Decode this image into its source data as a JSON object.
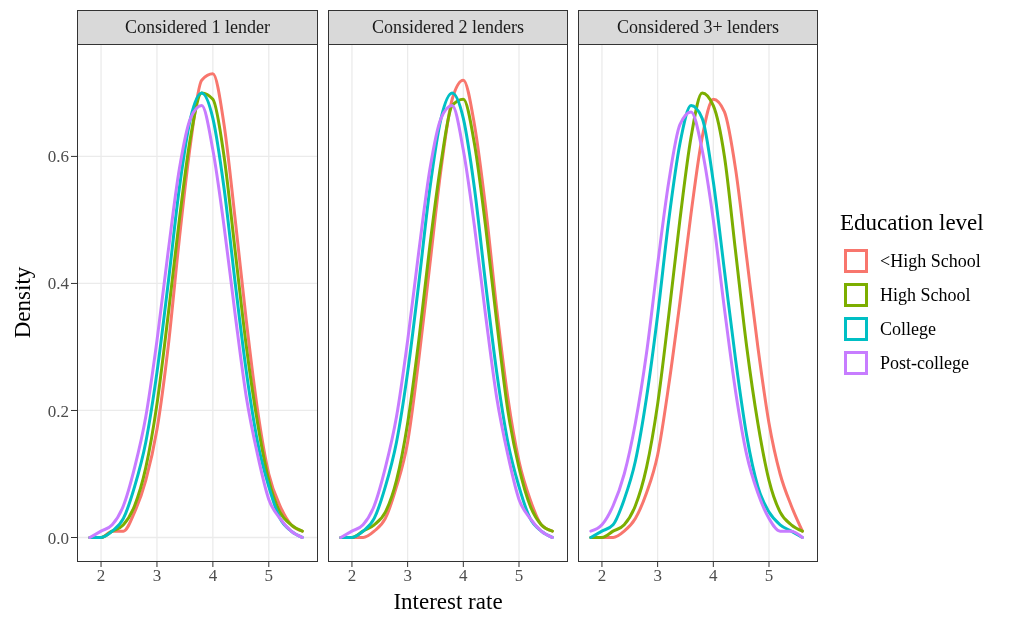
{
  "chart_data": [
    {
      "type": "line",
      "title": "Considered 1 lender",
      "ylabel": "Density",
      "x": [
        1.8,
        2.0,
        2.2,
        2.4,
        2.6,
        2.8,
        3.0,
        3.2,
        3.4,
        3.6,
        3.8,
        4.0,
        4.2,
        4.4,
        4.6,
        4.8,
        5.0,
        5.2,
        5.4,
        5.6
      ],
      "xlim": [
        1.57,
        5.88
      ],
      "ylim": [
        -0.037,
        0.777
      ],
      "xticks": [
        2,
        3,
        4,
        5
      ],
      "yticks": [
        {
          "value": 0,
          "label": "0.0"
        },
        0.2,
        0.4,
        0.6
      ],
      "grid": true,
      "series": [
        {
          "color": "#f8766d",
          "values": [
            0.0,
            0.0,
            0.01,
            0.01,
            0.04,
            0.09,
            0.17,
            0.3,
            0.47,
            0.62,
            0.72,
            0.73,
            0.65,
            0.5,
            0.34,
            0.2,
            0.1,
            0.05,
            0.02,
            0.01
          ]
        },
        {
          "color": "#7cae00",
          "values": [
            0.0,
            0.0,
            0.01,
            0.02,
            0.05,
            0.11,
            0.21,
            0.35,
            0.5,
            0.63,
            0.7,
            0.69,
            0.6,
            0.45,
            0.3,
            0.18,
            0.09,
            0.04,
            0.02,
            0.01
          ]
        },
        {
          "color": "#00bfc4",
          "values": [
            0.0,
            0.0,
            0.01,
            0.03,
            0.08,
            0.15,
            0.26,
            0.4,
            0.55,
            0.66,
            0.7,
            0.66,
            0.55,
            0.4,
            0.26,
            0.15,
            0.08,
            0.03,
            0.01,
            0.0
          ]
        },
        {
          "color": "#c77cff",
          "values": [
            0.0,
            0.01,
            0.02,
            0.05,
            0.11,
            0.19,
            0.31,
            0.45,
            0.58,
            0.66,
            0.68,
            0.61,
            0.49,
            0.35,
            0.22,
            0.13,
            0.06,
            0.03,
            0.01,
            0.0
          ]
        }
      ]
    },
    {
      "type": "line",
      "title": "Considered 2 lenders",
      "xlabel": "Interest rate",
      "x": [
        1.8,
        2.0,
        2.2,
        2.4,
        2.6,
        2.8,
        3.0,
        3.2,
        3.4,
        3.6,
        3.8,
        4.0,
        4.2,
        4.4,
        4.6,
        4.8,
        5.0,
        5.2,
        5.4,
        5.6
      ],
      "xlim": [
        1.57,
        5.88
      ],
      "ylim": [
        -0.037,
        0.777
      ],
      "xticks": [
        2,
        3,
        4,
        5
      ],
      "yticks": [
        0,
        0.2,
        0.4,
        0.6
      ],
      "grid": true,
      "tick_labels": "x",
      "series": [
        {
          "color": "#f8766d",
          "values": [
            0.0,
            0.0,
            0.0,
            0.01,
            0.03,
            0.08,
            0.15,
            0.28,
            0.43,
            0.58,
            0.69,
            0.72,
            0.65,
            0.52,
            0.36,
            0.22,
            0.12,
            0.06,
            0.02,
            0.01
          ]
        },
        {
          "color": "#7cae00",
          "values": [
            0.0,
            0.0,
            0.01,
            0.02,
            0.04,
            0.09,
            0.18,
            0.31,
            0.46,
            0.59,
            0.68,
            0.69,
            0.62,
            0.49,
            0.34,
            0.2,
            0.11,
            0.05,
            0.02,
            0.01
          ]
        },
        {
          "color": "#00bfc4",
          "values": [
            0.0,
            0.0,
            0.01,
            0.03,
            0.08,
            0.15,
            0.26,
            0.4,
            0.55,
            0.66,
            0.7,
            0.66,
            0.55,
            0.4,
            0.26,
            0.15,
            0.08,
            0.03,
            0.01,
            0.0
          ]
        },
        {
          "color": "#c77cff",
          "values": [
            0.0,
            0.01,
            0.02,
            0.05,
            0.11,
            0.19,
            0.31,
            0.45,
            0.58,
            0.66,
            0.68,
            0.61,
            0.49,
            0.35,
            0.22,
            0.13,
            0.06,
            0.03,
            0.01,
            0.0
          ]
        }
      ]
    },
    {
      "type": "line",
      "title": "Considered 3+ lenders",
      "legend_title": "Education level",
      "legend": "right",
      "x": [
        1.8,
        2.0,
        2.2,
        2.4,
        2.6,
        2.8,
        3.0,
        3.2,
        3.4,
        3.6,
        3.8,
        4.0,
        4.2,
        4.4,
        4.6,
        4.8,
        5.0,
        5.2,
        5.4,
        5.6
      ],
      "xlim": [
        1.57,
        5.88
      ],
      "ylim": [
        -0.037,
        0.777
      ],
      "xticks": [
        2,
        3,
        4,
        5
      ],
      "yticks": [
        0,
        0.2,
        0.4,
        0.6
      ],
      "grid": true,
      "tick_labels": "x",
      "series": [
        {
          "name": "<High School",
          "color": "#f8766d",
          "values": [
            0.0,
            0.0,
            0.0,
            0.01,
            0.03,
            0.07,
            0.13,
            0.24,
            0.37,
            0.51,
            0.63,
            0.69,
            0.67,
            0.58,
            0.44,
            0.3,
            0.18,
            0.1,
            0.05,
            0.01
          ]
        },
        {
          "name": "High School",
          "color": "#7cae00",
          "values": [
            0.0,
            0.0,
            0.01,
            0.02,
            0.05,
            0.11,
            0.21,
            0.35,
            0.5,
            0.63,
            0.7,
            0.68,
            0.6,
            0.45,
            0.3,
            0.18,
            0.09,
            0.04,
            0.02,
            0.01
          ]
        },
        {
          "name": "College",
          "color": "#00bfc4",
          "values": [
            0.0,
            0.01,
            0.02,
            0.06,
            0.12,
            0.22,
            0.35,
            0.5,
            0.62,
            0.68,
            0.66,
            0.56,
            0.42,
            0.28,
            0.16,
            0.08,
            0.04,
            0.02,
            0.01,
            0.0
          ]
        },
        {
          "name": "Post-college",
          "color": "#c77cff",
          "values": [
            0.01,
            0.02,
            0.05,
            0.1,
            0.18,
            0.29,
            0.43,
            0.56,
            0.65,
            0.67,
            0.61,
            0.5,
            0.36,
            0.23,
            0.13,
            0.07,
            0.03,
            0.01,
            0.01,
            0.0
          ]
        }
      ]
    }
  ]
}
